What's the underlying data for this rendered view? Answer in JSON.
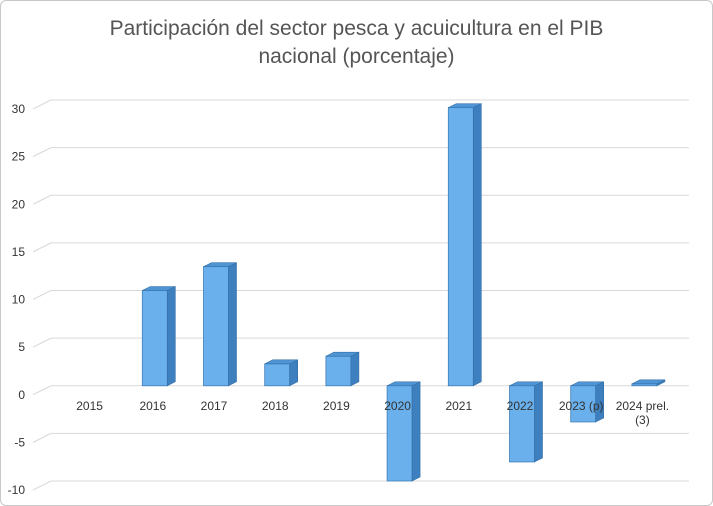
{
  "chart_data": {
    "type": "bar",
    "title_line1": "Participación del sector pesca y acuicultura en el PIB",
    "title_line2": "nacional (porcentaje)",
    "categories": [
      "2015",
      "2016",
      "2017",
      "2018",
      "2019",
      "2020",
      "2021",
      "2022",
      "2023 (p)",
      "2024 prel.|(3)"
    ],
    "values": [
      0,
      10,
      12.5,
      2.3,
      3.1,
      -10,
      29.2,
      -8,
      -3.8,
      0.2
    ],
    "ylim": [
      -10,
      30
    ],
    "yticks": [
      30,
      25,
      20,
      15,
      10,
      5,
      0,
      -5,
      -10
    ],
    "grid": true,
    "bar_color": "#6ab0ec"
  }
}
